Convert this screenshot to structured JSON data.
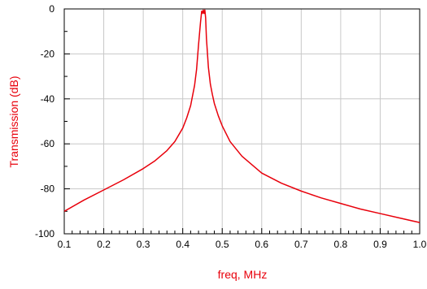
{
  "chart_data": {
    "type": "line",
    "xlabel": "freq, MHz",
    "ylabel": "Transmission (dB)",
    "xlim": [
      0.1,
      1.0
    ],
    "ylim": [
      -100,
      0
    ],
    "x_ticks": [
      0.1,
      0.2,
      0.3,
      0.4,
      0.5,
      0.6,
      0.7,
      0.8,
      0.9,
      1.0
    ],
    "x_tick_labels": [
      "0.1",
      "0.2",
      "0.3",
      "0.4",
      "0.5",
      "0.6",
      "0.7",
      "0.8",
      "0.9",
      "1.0"
    ],
    "y_ticks": [
      -100,
      -80,
      -60,
      -40,
      -20,
      0
    ],
    "y_tick_labels": [
      "-100",
      "-80",
      "-60",
      "-40",
      "-20",
      "0"
    ],
    "grid": true,
    "colors": {
      "series": "#e8000b",
      "axis_label": "#e8000b",
      "grid": "#c8c8c8",
      "axis": "#000000"
    },
    "series": [
      {
        "x": [
          0.1,
          0.15,
          0.2,
          0.25,
          0.3,
          0.33,
          0.36,
          0.38,
          0.4,
          0.41,
          0.42,
          0.43,
          0.435,
          0.44,
          0.445,
          0.448,
          0.45,
          0.452,
          0.454,
          0.456,
          0.458,
          0.46,
          0.465,
          0.47,
          0.475,
          0.48,
          0.49,
          0.5,
          0.52,
          0.55,
          0.6,
          0.65,
          0.7,
          0.75,
          0.8,
          0.85,
          0.9,
          0.95,
          1.0
        ],
        "values": [
          -90,
          -85,
          -80.5,
          -76,
          -71,
          -67.5,
          -63,
          -59,
          -53,
          -48.5,
          -43,
          -34,
          -27,
          -16,
          -6,
          -1,
          -2,
          -0.5,
          -2,
          -0.5,
          -4,
          -13,
          -26,
          -33.5,
          -38,
          -42,
          -47.5,
          -52,
          -59,
          -65.5,
          -73,
          -77.5,
          -81,
          -84,
          -86.5,
          -89,
          -91,
          -93,
          -95
        ]
      }
    ]
  }
}
